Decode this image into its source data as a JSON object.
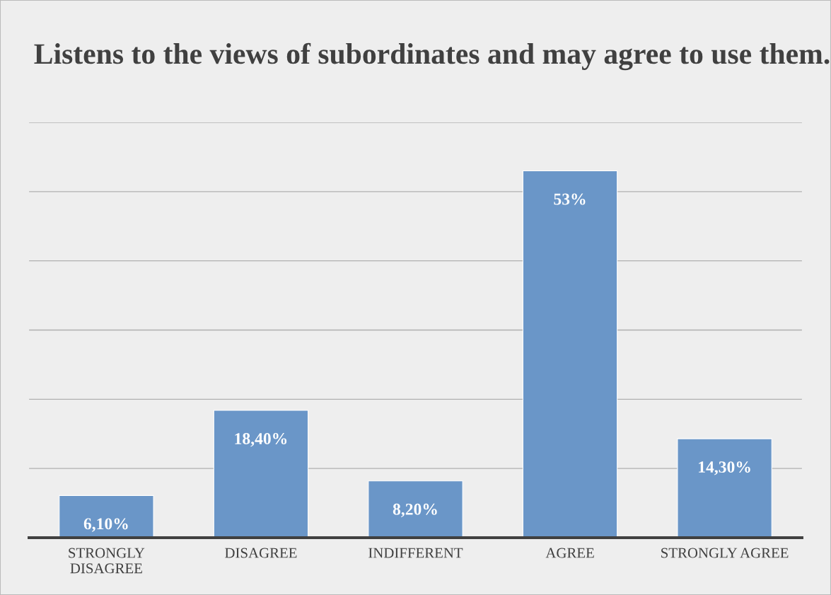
{
  "chart_data": {
    "type": "bar",
    "title": "Listens to the views of subordinates and may agree to use them.",
    "categories": [
      "STRONGLY\nDISAGREE",
      "DISAGREE",
      "INDIFFERENT",
      "AGREE",
      "STRONGLY AGREE"
    ],
    "values": [
      6.1,
      18.4,
      8.2,
      53,
      14.3
    ],
    "value_labels": [
      "6,10%",
      "18,40%",
      "8,20%",
      "53%",
      "14,30%"
    ],
    "color": "#6a96c8",
    "ylim": [
      0,
      60
    ],
    "yticks": [
      {
        "value": 0,
        "label": null
      },
      {
        "value": 10,
        "label": null
      },
      {
        "value": 20,
        "label": null
      },
      {
        "value": 30,
        "label": null
      },
      {
        "value": 40,
        "label": null
      },
      {
        "value": 50,
        "label": null
      },
      {
        "value": 60,
        "label": null
      }
    ],
    "tick_labels": "x",
    "grid": "y",
    "legend": false
  }
}
